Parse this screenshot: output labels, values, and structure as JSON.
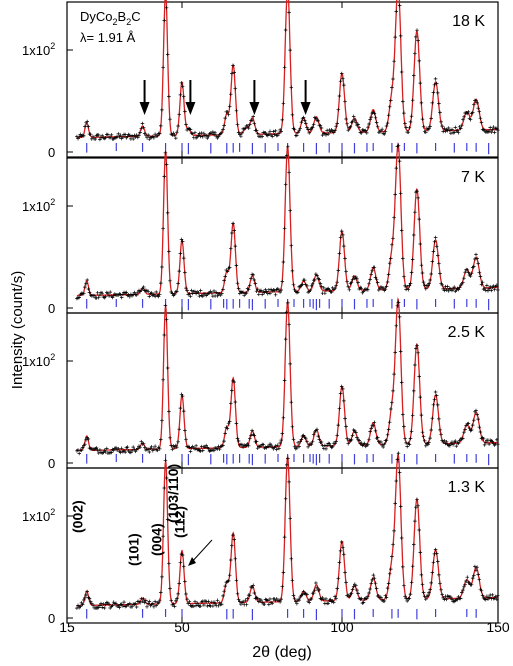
{
  "figure": {
    "compound_label_parts": [
      "DyCo",
      "2",
      "B",
      "2",
      "C"
    ],
    "wavelength_label": "λ= 1.91 Å",
    "ylabel": "Intensity (count/s)",
    "xlabel": "2θ (deg)",
    "ytick_mantissa": "1x10",
    "ytick_exponent": "2",
    "ytick_zero": "0",
    "xtick_labels": [
      "15",
      "50",
      "100",
      "150"
    ]
  },
  "colors": {
    "observed": "#000000",
    "calculated": "#d42020",
    "bragg_ticks": "#4040dd",
    "frame": "#000000",
    "panel_edge": "#6b1a1a"
  },
  "chart_data": {
    "type": "scatter",
    "x_range": [
      15,
      150
    ],
    "y_range": [
      0,
      170
    ],
    "x_ticks": [
      15,
      50,
      100,
      150
    ],
    "y_ticks": [
      0,
      100
    ],
    "peaks": [
      {
        "x": 21,
        "h": 14
      },
      {
        "x": 38,
        "h": 6
      },
      {
        "x": 45,
        "h": 140
      },
      {
        "x": 50,
        "h": 52
      },
      {
        "x": 64,
        "h": 20
      },
      {
        "x": 66,
        "h": 68
      },
      {
        "x": 72,
        "h": 16
      },
      {
        "x": 83,
        "h": 142
      },
      {
        "x": 88,
        "h": 10
      },
      {
        "x": 92,
        "h": 16
      },
      {
        "x": 100,
        "h": 58
      },
      {
        "x": 104,
        "h": 14
      },
      {
        "x": 110,
        "h": 22
      },
      {
        "x": 116,
        "h": 32
      },
      {
        "x": 118,
        "h": 140
      },
      {
        "x": 124,
        "h": 98
      },
      {
        "x": 130,
        "h": 48
      },
      {
        "x": 140,
        "h": 18
      },
      {
        "x": 143,
        "h": 30
      }
    ],
    "panels": [
      {
        "temperature": "18 K",
        "extra_peaks": [
          {
            "x": 38,
            "h": 4
          },
          {
            "x": 52,
            "h": 6
          },
          {
            "x": 70,
            "h": 6
          },
          {
            "x": 88,
            "h": 5
          }
        ],
        "arrows_x": [
          38,
          52,
          72,
          88
        ],
        "bragg_ticks": [
          21,
          30,
          38,
          45,
          50,
          52,
          59,
          64,
          66,
          68,
          72,
          76,
          80,
          83,
          88,
          92,
          96,
          100,
          104,
          108,
          110,
          116,
          118,
          120,
          124,
          130,
          136,
          140,
          143,
          147
        ]
      },
      {
        "temperature": "7 K",
        "extra_peaks": [],
        "arrows_x": [],
        "bragg_ticks": [
          21,
          30,
          38,
          45,
          50,
          52,
          59,
          63,
          64,
          66,
          68,
          71,
          72,
          76,
          80,
          83,
          85,
          88,
          90,
          91,
          92,
          93,
          96,
          100,
          104,
          108,
          110,
          116,
          118,
          120,
          124,
          130,
          136,
          140,
          143,
          147
        ]
      },
      {
        "temperature": "2.5 K",
        "extra_peaks": [],
        "arrows_x": [],
        "bragg_ticks": [
          21,
          30,
          38,
          45,
          50,
          52,
          59,
          63,
          64,
          66,
          68,
          71,
          72,
          76,
          80,
          83,
          85,
          88,
          90,
          91,
          92,
          93,
          96,
          100,
          104,
          108,
          110,
          116,
          118,
          120,
          124,
          130,
          136,
          140,
          143,
          147
        ]
      },
      {
        "temperature": "1.3 K",
        "extra_peaks": [],
        "arrows_x": [],
        "bragg_ticks": [
          21,
          38,
          45,
          50,
          64,
          66,
          72,
          83,
          88,
          92,
          100,
          104,
          110,
          116,
          118,
          124,
          130,
          140,
          143
        ],
        "reflection_labels": [
          {
            "text": "(002)",
            "x": 21
          },
          {
            "text": "(101)",
            "x": 38
          },
          {
            "text": "(004)",
            "x": 45
          },
          {
            "text": "(103/110)",
            "x": 50
          },
          {
            "text": "(112)",
            "x": 52
          }
        ]
      }
    ]
  }
}
